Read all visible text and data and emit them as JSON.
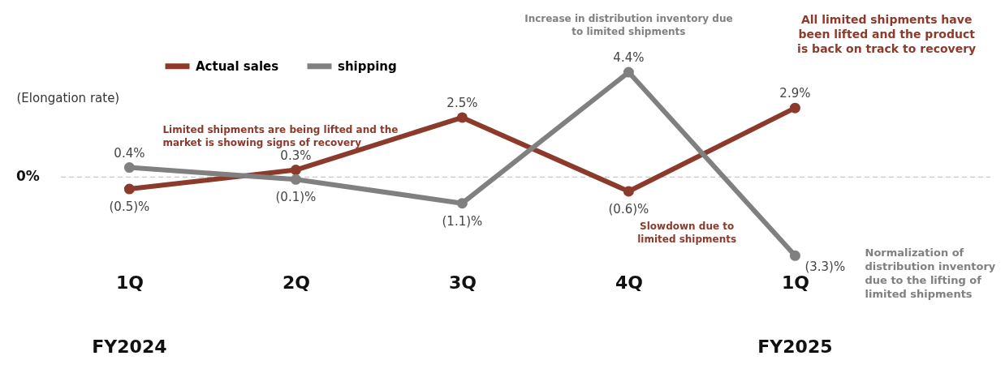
{
  "chart_data": {
    "type": "line",
    "categories": [
      "1Q",
      "2Q",
      "3Q",
      "4Q",
      "1Q"
    ],
    "ylabel": "(Elongation rate)",
    "series": [
      {
        "name": "Actual sales",
        "color": "#8b3a2b",
        "values": [
          -0.5,
          0.3,
          2.5,
          -0.6,
          2.9
        ],
        "value_labels": [
          "(0.5)%",
          "0.3%",
          "2.5%",
          "(0.6)%",
          "2.9%"
        ]
      },
      {
        "name": "shipping",
        "color": "#808080",
        "values": [
          0.4,
          -0.1,
          -1.1,
          4.4,
          -3.3
        ],
        "value_labels": [
          "0.4%",
          "(0.1)%",
          "(1.1)%",
          "4.4%",
          "(3.3)%"
        ]
      }
    ],
    "ref_lines": [
      {
        "axis": "y",
        "value": 0,
        "label": "0%",
        "color": "#c8c8c8",
        "line_style": "dashed"
      }
    ],
    "annotations": [
      "Increase in distribution inventory due to limited shipments",
      "All limited shipments have been lifted and the product is back on track to recovery",
      "Limited shipments are being lifted and the market is showing signs of recovery",
      "Slowdown due to limited shipments",
      "Normalization of distribution inventory due to the lifting of limited shipments",
      "FY2024",
      "FY2025"
    ],
    "legend": "top",
    "tick_labels": "x",
    "marker": "circle",
    "line_style": "solid"
  }
}
